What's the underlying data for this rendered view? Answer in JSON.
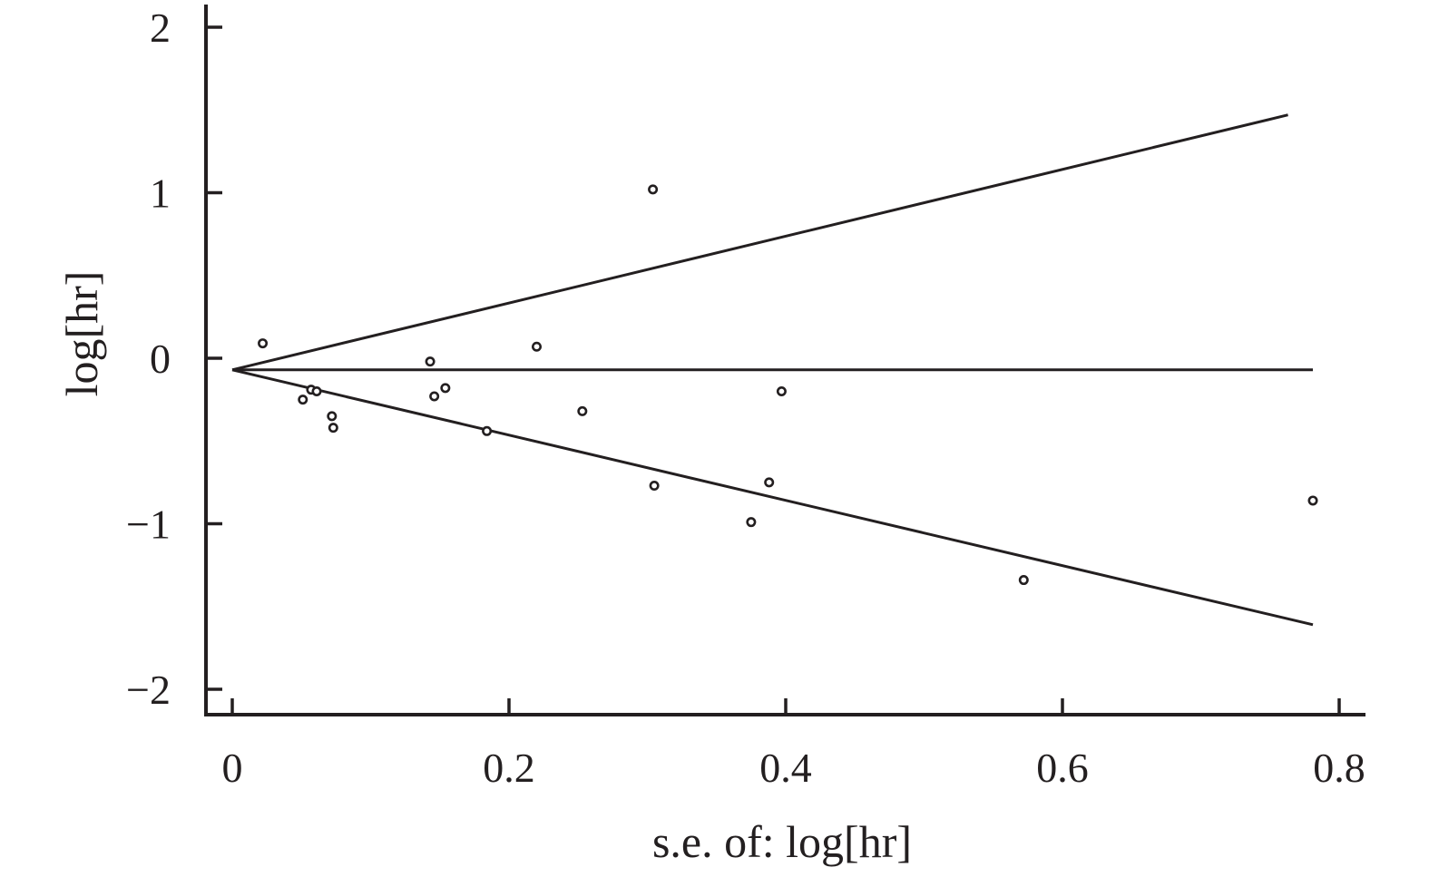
{
  "chart_data": {
    "type": "scatter",
    "title": "",
    "xlabel": "s.e. of: log[hr]",
    "ylabel": "log[hr]",
    "xlim": [
      0,
      0.8
    ],
    "ylim": [
      -2,
      2
    ],
    "x_ticks": [
      "0",
      "0.2",
      "0.4",
      "0.6",
      "0.8"
    ],
    "x_tick_values": [
      0,
      0.2,
      0.4,
      0.6,
      0.8
    ],
    "y_ticks": [
      "2",
      "1",
      "0",
      "−1",
      "−2"
    ],
    "y_tick_values": [
      2,
      1,
      0,
      -1,
      -2
    ],
    "grid": false,
    "series": [
      {
        "points": [
          {
            "x": 0.022,
            "y": 0.09
          },
          {
            "x": 0.051,
            "y": -0.25
          },
          {
            "x": 0.057,
            "y": -0.19
          },
          {
            "x": 0.061,
            "y": -0.2
          },
          {
            "x": 0.072,
            "y": -0.35
          },
          {
            "x": 0.073,
            "y": -0.42
          },
          {
            "x": 0.143,
            "y": -0.02
          },
          {
            "x": 0.146,
            "y": -0.23
          },
          {
            "x": 0.154,
            "y": -0.18
          },
          {
            "x": 0.184,
            "y": -0.44
          },
          {
            "x": 0.22,
            "y": 0.07
          },
          {
            "x": 0.253,
            "y": -0.32
          },
          {
            "x": 0.304,
            "y": 1.02
          },
          {
            "x": 0.305,
            "y": -0.77
          },
          {
            "x": 0.375,
            "y": -0.99
          },
          {
            "x": 0.388,
            "y": -0.75
          },
          {
            "x": 0.397,
            "y": -0.2
          },
          {
            "x": 0.572,
            "y": -1.34
          },
          {
            "x": 0.781,
            "y": -0.86
          }
        ]
      }
    ],
    "reference_lines": {
      "pooled_estimate": -0.07,
      "x_start": 0,
      "x_end": 0.781,
      "upper_end": 1.47,
      "lower_end": -1.61
    }
  }
}
